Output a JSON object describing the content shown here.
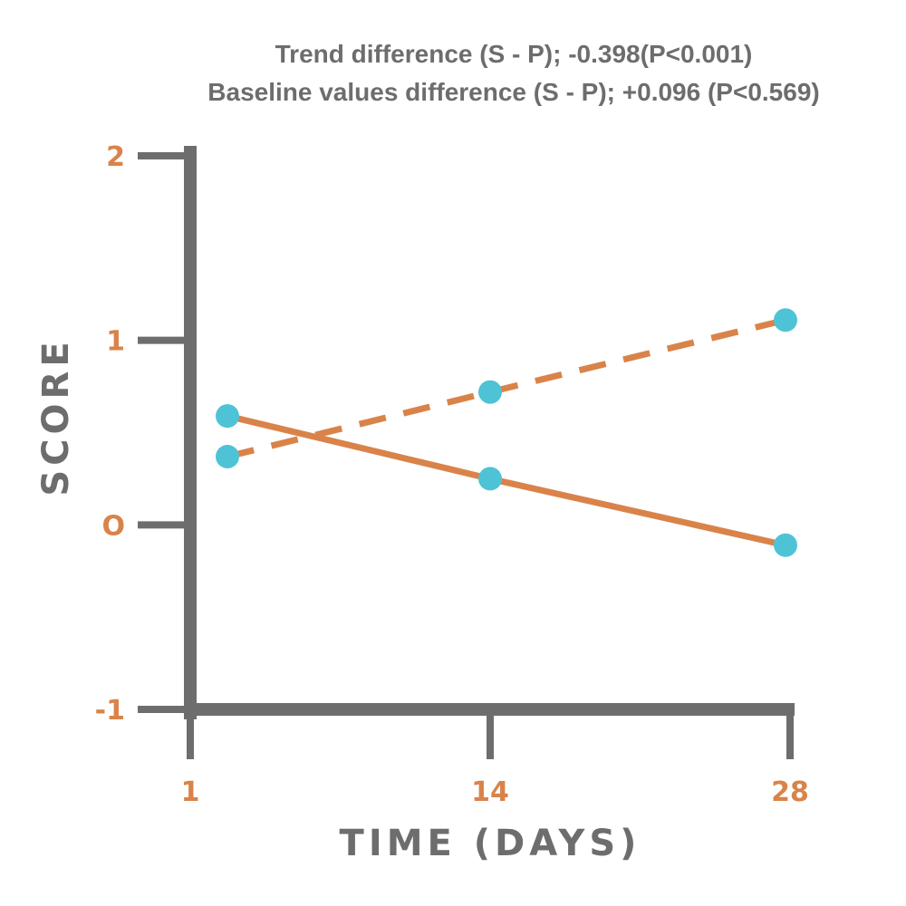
{
  "chart_data": {
    "type": "line",
    "subtitles": [
      "Trend difference (S - P); -0.398(P<0.001)",
      "Baseline values difference (S - P); +0.096 (P<0.569)"
    ],
    "xlabel": "TIME (DAYS)",
    "ylabel": "SCORE",
    "x_ticks": [
      "1",
      "14",
      "28"
    ],
    "y_ticks": [
      "2",
      "1",
      "O",
      "-1"
    ],
    "ylim": [
      -1,
      2
    ],
    "series": [
      {
        "style": "solid",
        "points": [
          {
            "x": 1,
            "y": 0.59
          },
          {
            "x": 14,
            "y": 0.25
          },
          {
            "x": 28,
            "y": -0.11
          }
        ]
      },
      {
        "style": "dashed",
        "points": [
          {
            "x": 1,
            "y": 0.37
          },
          {
            "x": 14,
            "y": 0.72
          },
          {
            "x": 28,
            "y": 1.11
          }
        ]
      }
    ],
    "colors": {
      "axis": "#6d6d6d",
      "line": "#d9834a",
      "marker": "#4ec3d6",
      "tick_label": "#d9834a"
    }
  }
}
